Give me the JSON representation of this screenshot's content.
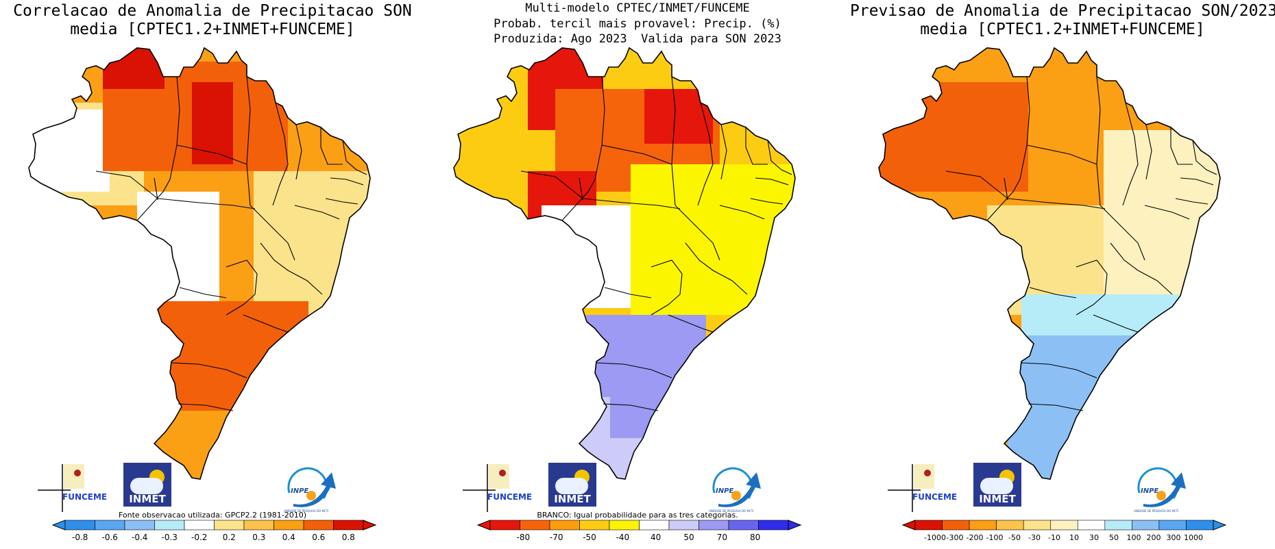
{
  "panels": [
    {
      "title_lines": [
        "Correlacao de Anomalia de Precipitacao SON",
        "media [CPTEC1.2+INMET+FUNCEME]"
      ],
      "note": "Fonte observacao utilizada: GPCP2.2 (1981-2010)",
      "colorbar": {
        "colors": [
          "#2f8fea",
          "#5aa6f0",
          "#8cc0f5",
          "#b6ecf8",
          "#ffffff",
          "#fbe38c",
          "#fcc24e",
          "#fb9f14",
          "#f3600a",
          "#d91204"
        ],
        "tick_labels": [
          "-0.8",
          "-0.6",
          "-0.4",
          "-0.3",
          "-0.2",
          "0.2",
          "0.3",
          "0.4",
          "0.6",
          "0.8"
        ],
        "extend": "both"
      }
    },
    {
      "title_lines": [
        "Multi-modelo CPTEC/INMET/FUNCEME",
        "Probab. tercil mais provavel: Precip. (%)",
        "Produzida: Ago 2023  Valida para SON 2023"
      ],
      "note": "BRANCO: Igual probabilidade para as tres categorias.",
      "colorbar": {
        "colors": [
          "#e5160b",
          "#f5640b",
          "#fb9d0c",
          "#fbcc12",
          "#fbf500",
          "#ffffff",
          "#cdcbf7",
          "#9c9af2",
          "#6966ee",
          "#2f2cea"
        ],
        "tick_labels": [
          "-80",
          "-70",
          "-50",
          "-40",
          "40",
          "50",
          "70",
          "80"
        ],
        "extend": "both"
      }
    },
    {
      "title_lines": [
        "Previsao de Anomalia de Precipitacao SON/2023",
        "media [CPTEC1.2+INMET+FUNCEME]"
      ],
      "note": "",
      "colorbar": {
        "colors": [
          "#d91204",
          "#f3600a",
          "#fb9f14",
          "#fcc24e",
          "#fbe38c",
          "#fdf1c0",
          "#ffffff",
          "#b6ecf8",
          "#8cc0f5",
          "#5aa6f0",
          "#2f8fea"
        ],
        "tick_labels": [
          "-1000",
          "-300",
          "-200",
          "-100",
          "-50",
          "-30",
          "-10",
          "10",
          "30",
          "50",
          "100",
          "200",
          "300",
          "1000"
        ],
        "extend": "both"
      }
    }
  ],
  "logos": {
    "funceme": "FUNCEME",
    "inmet": "INMET",
    "inpe": "INPE",
    "inpe_sub": "UNIDADE DE PESQUISA DO MCTI"
  },
  "map_colors": {
    "panel0": {
      "north": "#f3600a",
      "northwest": "#fbe38c",
      "dry_core": "#ffffff",
      "center_east": "#fb9f14",
      "northeast_coast": "#fbe38c",
      "southeast": "#f3600a",
      "south": "#fb9f14",
      "peak": "#d91204"
    },
    "panel1": {
      "north": "#fbcc12",
      "peak": "#e5160b",
      "orange_core": "#f5640b",
      "center_east": "#fbf500",
      "west_center": "#ffffff",
      "south": "#9c9af2",
      "south_light": "#cdcbf7"
    },
    "panel2": {
      "north": "#fb9f14",
      "northwest": "#f3600a",
      "center": "#fbe38c",
      "northeast": "#fdf1c0",
      "south_edge": "#b6ecf8",
      "south": "#8cc0f5"
    }
  }
}
